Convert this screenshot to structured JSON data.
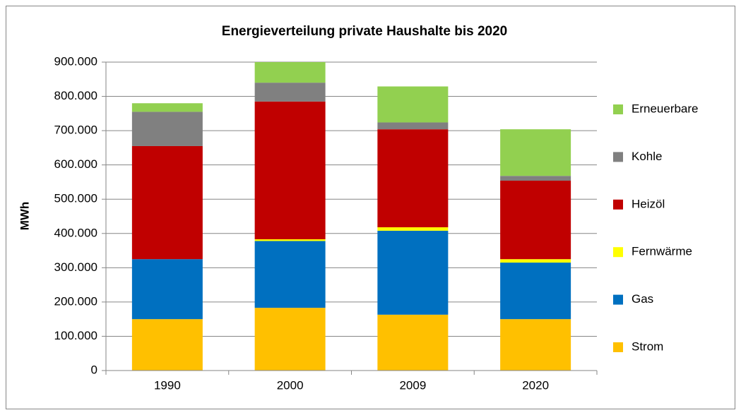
{
  "chart_data": {
    "type": "stacked_bar",
    "title": "Energieverteilung  private Haushalte  bis 2020",
    "y_label": "MWh",
    "categories": [
      "1990",
      "2000",
      "2009",
      "2020"
    ],
    "series": [
      {
        "name": "Strom",
        "color": "#ffc000",
        "values": [
          150000,
          183000,
          163000,
          150000
        ]
      },
      {
        "name": "Gas",
        "color": "#0070c0",
        "values": [
          175000,
          195000,
          245000,
          165000
        ]
      },
      {
        "name": "Fernwärme",
        "color": "#ffff00",
        "values": [
          0,
          5000,
          10000,
          10000
        ]
      },
      {
        "name": "Heizöl",
        "color": "#c00000",
        "values": [
          330000,
          402000,
          286000,
          229000
        ]
      },
      {
        "name": "Kohle",
        "color": "#808080",
        "values": [
          100000,
          55000,
          20000,
          14000
        ]
      },
      {
        "name": "Erneuerbare",
        "color": "#92d050",
        "values": [
          25000,
          60000,
          105000,
          136000
        ]
      }
    ],
    "ylim": [
      0,
      900000
    ],
    "yticks": [
      0,
      {
        "value": 100000,
        "label": "100.000"
      },
      {
        "value": 200000,
        "label": "200.000"
      },
      {
        "value": 300000,
        "label": "300.000"
      },
      {
        "value": 400000,
        "label": "400.000"
      },
      {
        "value": 500000,
        "label": "500.000"
      },
      {
        "value": 600000,
        "label": "600.000"
      },
      {
        "value": 700000,
        "label": "700.000"
      },
      {
        "value": 800000,
        "label": "800.000"
      },
      {
        "value": 900000,
        "label": "900.000"
      }
    ],
    "grid": true,
    "legend": "right"
  }
}
